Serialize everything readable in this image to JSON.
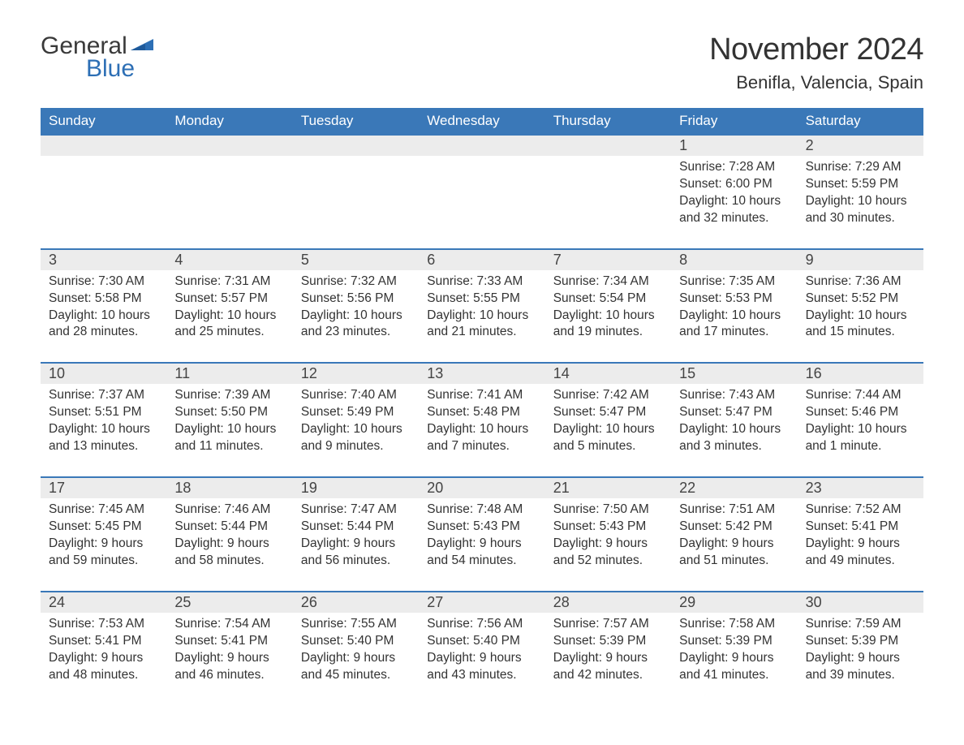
{
  "logo": {
    "general": "General",
    "blue": "Blue"
  },
  "title": "November 2024",
  "location": "Benifla, Valencia, Spain",
  "colors": {
    "header_bg": "#3a78b8",
    "header_text": "#ffffff",
    "daynum_bg": "#ececec",
    "border_top": "#3a78b8",
    "body_text": "#333333",
    "logo_blue": "#2d6fb5",
    "logo_gray": "#3a3a3a"
  },
  "typography": {
    "title_fontsize": 38,
    "location_fontsize": 22,
    "dow_fontsize": 17,
    "daynum_fontsize": 18,
    "detail_fontsize": 15.5
  },
  "days_of_week": [
    "Sunday",
    "Monday",
    "Tuesday",
    "Wednesday",
    "Thursday",
    "Friday",
    "Saturday"
  ],
  "weeks": [
    [
      null,
      null,
      null,
      null,
      null,
      {
        "n": "1",
        "sunrise": "Sunrise: 7:28 AM",
        "sunset": "Sunset: 6:00 PM",
        "daylight": "Daylight: 10 hours and 32 minutes."
      },
      {
        "n": "2",
        "sunrise": "Sunrise: 7:29 AM",
        "sunset": "Sunset: 5:59 PM",
        "daylight": "Daylight: 10 hours and 30 minutes."
      }
    ],
    [
      {
        "n": "3",
        "sunrise": "Sunrise: 7:30 AM",
        "sunset": "Sunset: 5:58 PM",
        "daylight": "Daylight: 10 hours and 28 minutes."
      },
      {
        "n": "4",
        "sunrise": "Sunrise: 7:31 AM",
        "sunset": "Sunset: 5:57 PM",
        "daylight": "Daylight: 10 hours and 25 minutes."
      },
      {
        "n": "5",
        "sunrise": "Sunrise: 7:32 AM",
        "sunset": "Sunset: 5:56 PM",
        "daylight": "Daylight: 10 hours and 23 minutes."
      },
      {
        "n": "6",
        "sunrise": "Sunrise: 7:33 AM",
        "sunset": "Sunset: 5:55 PM",
        "daylight": "Daylight: 10 hours and 21 minutes."
      },
      {
        "n": "7",
        "sunrise": "Sunrise: 7:34 AM",
        "sunset": "Sunset: 5:54 PM",
        "daylight": "Daylight: 10 hours and 19 minutes."
      },
      {
        "n": "8",
        "sunrise": "Sunrise: 7:35 AM",
        "sunset": "Sunset: 5:53 PM",
        "daylight": "Daylight: 10 hours and 17 minutes."
      },
      {
        "n": "9",
        "sunrise": "Sunrise: 7:36 AM",
        "sunset": "Sunset: 5:52 PM",
        "daylight": "Daylight: 10 hours and 15 minutes."
      }
    ],
    [
      {
        "n": "10",
        "sunrise": "Sunrise: 7:37 AM",
        "sunset": "Sunset: 5:51 PM",
        "daylight": "Daylight: 10 hours and 13 minutes."
      },
      {
        "n": "11",
        "sunrise": "Sunrise: 7:39 AM",
        "sunset": "Sunset: 5:50 PM",
        "daylight": "Daylight: 10 hours and 11 minutes."
      },
      {
        "n": "12",
        "sunrise": "Sunrise: 7:40 AM",
        "sunset": "Sunset: 5:49 PM",
        "daylight": "Daylight: 10 hours and 9 minutes."
      },
      {
        "n": "13",
        "sunrise": "Sunrise: 7:41 AM",
        "sunset": "Sunset: 5:48 PM",
        "daylight": "Daylight: 10 hours and 7 minutes."
      },
      {
        "n": "14",
        "sunrise": "Sunrise: 7:42 AM",
        "sunset": "Sunset: 5:47 PM",
        "daylight": "Daylight: 10 hours and 5 minutes."
      },
      {
        "n": "15",
        "sunrise": "Sunrise: 7:43 AM",
        "sunset": "Sunset: 5:47 PM",
        "daylight": "Daylight: 10 hours and 3 minutes."
      },
      {
        "n": "16",
        "sunrise": "Sunrise: 7:44 AM",
        "sunset": "Sunset: 5:46 PM",
        "daylight": "Daylight: 10 hours and 1 minute."
      }
    ],
    [
      {
        "n": "17",
        "sunrise": "Sunrise: 7:45 AM",
        "sunset": "Sunset: 5:45 PM",
        "daylight": "Daylight: 9 hours and 59 minutes."
      },
      {
        "n": "18",
        "sunrise": "Sunrise: 7:46 AM",
        "sunset": "Sunset: 5:44 PM",
        "daylight": "Daylight: 9 hours and 58 minutes."
      },
      {
        "n": "19",
        "sunrise": "Sunrise: 7:47 AM",
        "sunset": "Sunset: 5:44 PM",
        "daylight": "Daylight: 9 hours and 56 minutes."
      },
      {
        "n": "20",
        "sunrise": "Sunrise: 7:48 AM",
        "sunset": "Sunset: 5:43 PM",
        "daylight": "Daylight: 9 hours and 54 minutes."
      },
      {
        "n": "21",
        "sunrise": "Sunrise: 7:50 AM",
        "sunset": "Sunset: 5:43 PM",
        "daylight": "Daylight: 9 hours and 52 minutes."
      },
      {
        "n": "22",
        "sunrise": "Sunrise: 7:51 AM",
        "sunset": "Sunset: 5:42 PM",
        "daylight": "Daylight: 9 hours and 51 minutes."
      },
      {
        "n": "23",
        "sunrise": "Sunrise: 7:52 AM",
        "sunset": "Sunset: 5:41 PM",
        "daylight": "Daylight: 9 hours and 49 minutes."
      }
    ],
    [
      {
        "n": "24",
        "sunrise": "Sunrise: 7:53 AM",
        "sunset": "Sunset: 5:41 PM",
        "daylight": "Daylight: 9 hours and 48 minutes."
      },
      {
        "n": "25",
        "sunrise": "Sunrise: 7:54 AM",
        "sunset": "Sunset: 5:41 PM",
        "daylight": "Daylight: 9 hours and 46 minutes."
      },
      {
        "n": "26",
        "sunrise": "Sunrise: 7:55 AM",
        "sunset": "Sunset: 5:40 PM",
        "daylight": "Daylight: 9 hours and 45 minutes."
      },
      {
        "n": "27",
        "sunrise": "Sunrise: 7:56 AM",
        "sunset": "Sunset: 5:40 PM",
        "daylight": "Daylight: 9 hours and 43 minutes."
      },
      {
        "n": "28",
        "sunrise": "Sunrise: 7:57 AM",
        "sunset": "Sunset: 5:39 PM",
        "daylight": "Daylight: 9 hours and 42 minutes."
      },
      {
        "n": "29",
        "sunrise": "Sunrise: 7:58 AM",
        "sunset": "Sunset: 5:39 PM",
        "daylight": "Daylight: 9 hours and 41 minutes."
      },
      {
        "n": "30",
        "sunrise": "Sunrise: 7:59 AM",
        "sunset": "Sunset: 5:39 PM",
        "daylight": "Daylight: 9 hours and 39 minutes."
      }
    ]
  ]
}
